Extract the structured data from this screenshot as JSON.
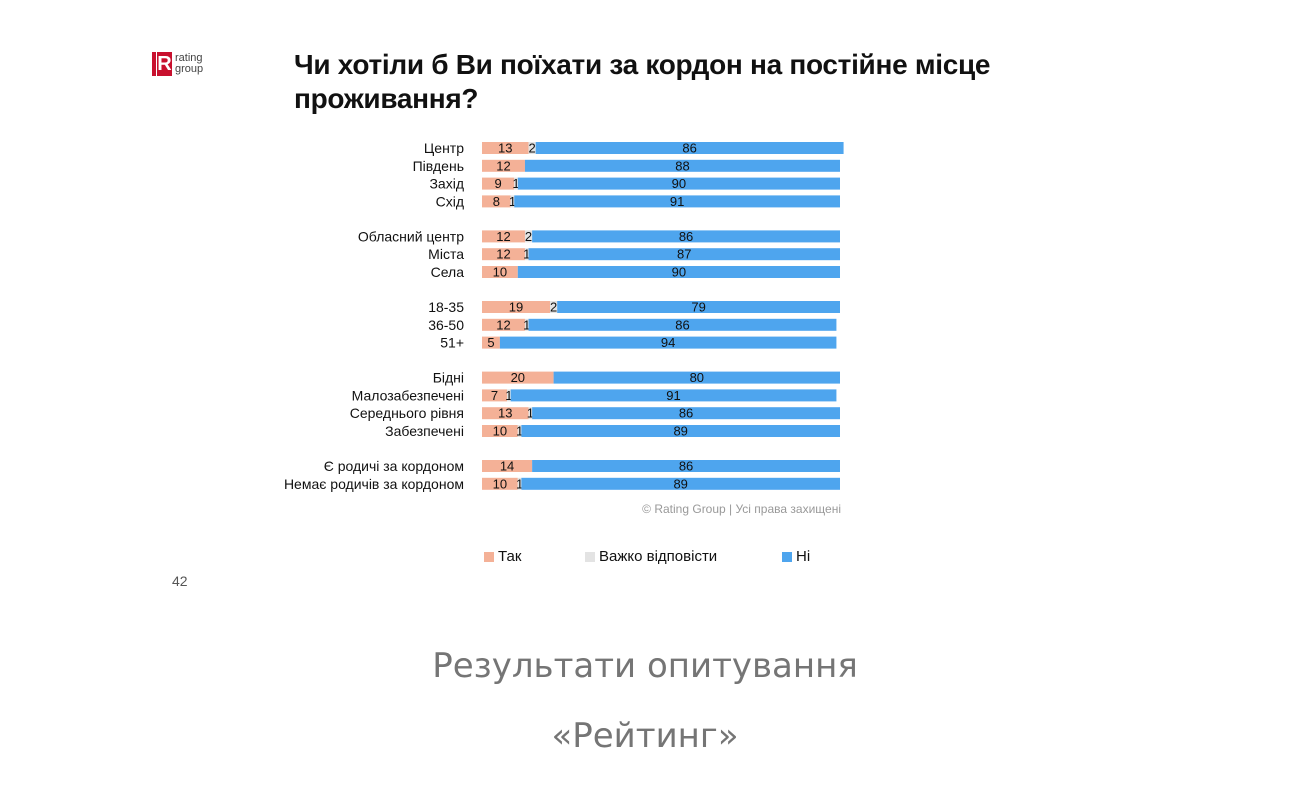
{
  "logo": {
    "mark": "R",
    "line1": "rating",
    "line2": "group"
  },
  "title": "Чи хотіли б Ви поїхати за кордон на постійне місце проживання?",
  "colors": {
    "yes": "#f4b197",
    "hard": "#e3e3e3",
    "no": "#4ea5ee"
  },
  "chart_data": {
    "type": "bar",
    "orientation": "horizontal",
    "stacked": true,
    "title": "Чи хотіли б Ви поїхати за кордон на постійне місце проживання?",
    "categories": [
      "Центр",
      "Південь",
      "Захід",
      "Схід",
      "Обласний центр",
      "Міста",
      "Села",
      "18-35",
      "36-50",
      "51+",
      "Бідні",
      "Малозабезпечені",
      "Середнього рівня",
      "Забезпечені",
      "Є родичі за кордоном",
      "Немає родичів за кордоном"
    ],
    "groups": [
      [
        0,
        1,
        2,
        3
      ],
      [
        4,
        5,
        6
      ],
      [
        7,
        8,
        9
      ],
      [
        10,
        11,
        12,
        13
      ],
      [
        14,
        15
      ]
    ],
    "series": [
      {
        "name": "Так",
        "values": [
          13,
          12,
          9,
          8,
          12,
          12,
          10,
          19,
          12,
          5,
          20,
          7,
          13,
          10,
          14,
          10
        ]
      },
      {
        "name": "Важко відповісти",
        "values": [
          2,
          null,
          1,
          1,
          2,
          1,
          null,
          2,
          1,
          null,
          null,
          1,
          1,
          1,
          null,
          1
        ]
      },
      {
        "name": "Ні",
        "values": [
          86,
          88,
          90,
          91,
          86,
          87,
          90,
          79,
          86,
          94,
          80,
          91,
          86,
          89,
          86,
          89
        ]
      }
    ],
    "xlim": [
      0,
      100
    ],
    "legend": "bottom"
  },
  "copyright": "© Rating Group | Усі права захищені",
  "legend": [
    {
      "label": "Так"
    },
    {
      "label": "Важко відповісти"
    },
    {
      "label": "Ні"
    }
  ],
  "page_number": "42",
  "caption": {
    "line1": "Результати опитування",
    "line2": "«Рейтинг»"
  }
}
